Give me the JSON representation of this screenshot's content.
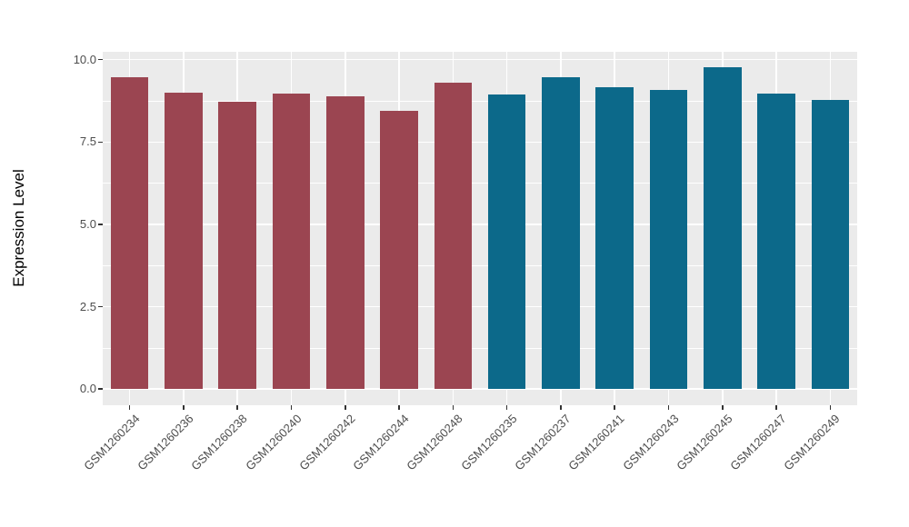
{
  "figure": {
    "background": "#FFFFFF",
    "panel_background": "#EBEBEB",
    "grid_color": "#FFFFFF",
    "tick_mark_color": "#333333",
    "axis_text_color": "#4D4D4D",
    "axis_title_color": "#000000"
  },
  "chart_data": {
    "type": "bar",
    "title": "",
    "xlabel": "",
    "ylabel": "Expression Level",
    "categories": [
      "GSM1260234",
      "GSM1260236",
      "GSM1260238",
      "GSM1260240",
      "GSM1260242",
      "GSM1260244",
      "GSM1260248",
      "GSM1260235",
      "GSM1260237",
      "GSM1260241",
      "GSM1260243",
      "GSM1260245",
      "GSM1260247",
      "GSM1260249"
    ],
    "values": [
      9.47,
      8.99,
      8.73,
      8.97,
      8.88,
      8.45,
      9.31,
      8.94,
      9.47,
      9.17,
      9.07,
      9.76,
      8.97,
      8.77
    ],
    "bar_groups": [
      "A",
      "A",
      "A",
      "A",
      "A",
      "A",
      "A",
      "B",
      "B",
      "B",
      "B",
      "B",
      "B",
      "B"
    ],
    "group_colors": {
      "A": "#9B4551",
      "B": "#0C698A"
    },
    "bar_width_fraction": 0.7,
    "y_ticks": [
      0,
      2.5,
      5,
      7.5,
      10
    ],
    "y_tick_labels": [
      "0.0",
      "2.5",
      "5.0",
      "7.5",
      "10.0"
    ],
    "y_minor_ticks": [
      1.25,
      3.75,
      6.25,
      8.75
    ],
    "ylim": [
      -0.49,
      10.24
    ],
    "baseline": 0,
    "grid": true,
    "legend_position": "none"
  }
}
